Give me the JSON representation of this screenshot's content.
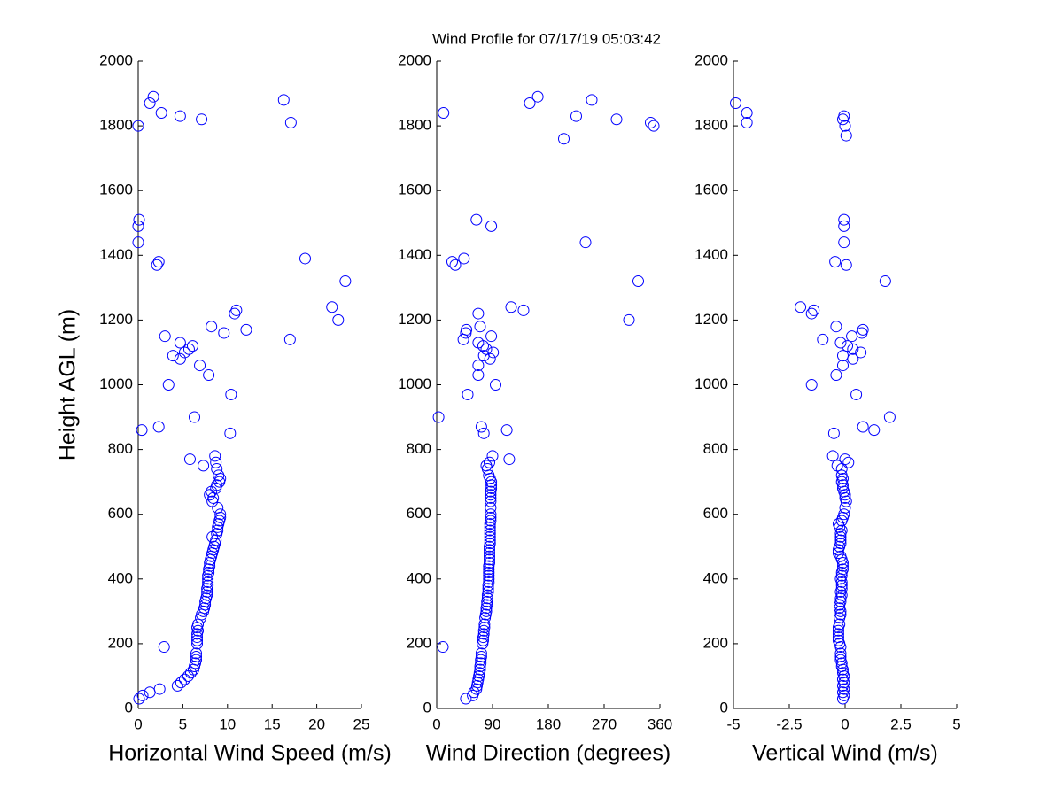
{
  "title": "Wind Profile for  07/17/19 05:03:42",
  "chart_data": [
    {
      "type": "scatter",
      "xlabel": "Horizontal Wind Speed (m/s)",
      "ylabel": "Height AGL (m)",
      "color": "#0000ff",
      "xlim": [
        0,
        25
      ],
      "xticks": [
        0,
        5,
        10,
        15,
        20,
        25
      ],
      "ylim": [
        0,
        2000
      ],
      "yticks": [
        0,
        200,
        400,
        600,
        800,
        1000,
        1200,
        1400,
        1600,
        1800,
        2000
      ],
      "x": [
        0.1,
        0.5,
        1.3,
        2.4,
        4.4,
        4.8,
        5.2,
        5.6,
        5.9,
        6.2,
        6.3,
        6.4,
        6.5,
        6.5,
        6.5,
        2.9,
        6.6,
        6.6,
        6.6,
        6.6,
        6.7,
        6.6,
        6.7,
        7.0,
        7.1,
        7.3,
        7.4,
        7.5,
        7.5,
        7.6,
        7.7,
        7.7,
        7.7,
        7.8,
        7.8,
        7.8,
        7.8,
        7.9,
        7.9,
        8.0,
        8.0,
        8.1,
        8.2,
        8.3,
        8.4,
        8.5,
        8.6,
        8.7,
        8.3,
        8.8,
        8.9,
        8.9,
        9.0,
        9.1,
        9.2,
        9.2,
        8.9,
        8.3,
        8.4,
        8.0,
        8.2,
        8.7,
        8.8,
        9.1,
        9.2,
        9.0,
        8.8,
        7.3,
        8.7,
        5.8,
        8.6,
        10.3,
        0.4,
        2.3,
        6.3,
        10.4,
        3.4,
        7.9,
        6.9,
        4.7,
        3.9,
        5.2,
        5.7,
        6.1,
        4.7,
        17.0,
        3.0,
        9.6,
        12.1,
        8.2,
        22.4,
        10.8,
        11.0,
        21.7,
        23.2,
        2.1,
        2.3,
        18.7,
        0.0,
        0.0,
        0.1,
        0.0,
        17.1,
        7.1,
        4.7,
        2.6,
        1.3,
        16.3,
        1.7
      ],
      "y": [
        30,
        40,
        50,
        60,
        70,
        80,
        90,
        100,
        110,
        120,
        130,
        140,
        150,
        160,
        170,
        190,
        200,
        210,
        220,
        230,
        240,
        250,
        260,
        280,
        290,
        300,
        310,
        320,
        330,
        340,
        350,
        360,
        370,
        380,
        390,
        400,
        410,
        420,
        430,
        440,
        450,
        460,
        470,
        480,
        490,
        500,
        510,
        520,
        530,
        540,
        550,
        560,
        570,
        580,
        590,
        600,
        620,
        640,
        650,
        660,
        670,
        680,
        690,
        700,
        710,
        720,
        740,
        750,
        760,
        770,
        780,
        850,
        860,
        870,
        900,
        970,
        1000,
        1030,
        1060,
        1080,
        1090,
        1100,
        1110,
        1120,
        1130,
        1140,
        1150,
        1160,
        1170,
        1180,
        1200,
        1220,
        1230,
        1240,
        1320,
        1370,
        1380,
        1390,
        1440,
        1490,
        1510,
        1800,
        1810,
        1820,
        1830,
        1840,
        1870,
        1880,
        1890
      ]
    },
    {
      "type": "scatter",
      "xlabel": "Wind Direction (degrees)",
      "color": "#0000ff",
      "xlim": [
        0,
        360
      ],
      "xticks": [
        0,
        90,
        180,
        270,
        360
      ],
      "ylim": [
        0,
        2000
      ],
      "yticks": [
        0,
        200,
        400,
        600,
        800,
        1000,
        1200,
        1400,
        1600,
        1800,
        2000
      ],
      "x": [
        47,
        58,
        60,
        64,
        65,
        66,
        67,
        68,
        69,
        70,
        70,
        71,
        71,
        72,
        72,
        10,
        74,
        75,
        75,
        76,
        76,
        77,
        77,
        78,
        79,
        80,
        80,
        81,
        81,
        82,
        82,
        83,
        83,
        83,
        84,
        84,
        84,
        84,
        84,
        84,
        85,
        85,
        85,
        85,
        85,
        85,
        86,
        86,
        86,
        86,
        86,
        86,
        86,
        87,
        87,
        87,
        87,
        87,
        87,
        87,
        87,
        88,
        88,
        88,
        86,
        84,
        82,
        80,
        85,
        117,
        90,
        76,
        113,
        72,
        3,
        50,
        95,
        67,
        67,
        86,
        76,
        91,
        80,
        75,
        67,
        43,
        88,
        47,
        48,
        70,
        310,
        67,
        140,
        120,
        325,
        30,
        25,
        44,
        240,
        88,
        64,
        205,
        350,
        345,
        290,
        225,
        11,
        150,
        250,
        163
      ],
      "y": [
        30,
        40,
        50,
        60,
        70,
        80,
        90,
        100,
        110,
        120,
        130,
        140,
        150,
        160,
        170,
        190,
        200,
        210,
        220,
        230,
        240,
        250,
        260,
        280,
        290,
        300,
        310,
        320,
        330,
        340,
        350,
        360,
        370,
        380,
        390,
        400,
        410,
        420,
        430,
        440,
        450,
        460,
        470,
        480,
        490,
        500,
        510,
        520,
        530,
        540,
        550,
        560,
        570,
        580,
        590,
        600,
        620,
        640,
        650,
        660,
        670,
        680,
        690,
        700,
        710,
        720,
        740,
        750,
        760,
        770,
        780,
        850,
        860,
        870,
        900,
        970,
        1000,
        1030,
        1060,
        1080,
        1090,
        1100,
        1110,
        1120,
        1130,
        1140,
        1150,
        1160,
        1170,
        1180,
        1200,
        1220,
        1230,
        1240,
        1320,
        1370,
        1380,
        1390,
        1440,
        1490,
        1510,
        1760,
        1800,
        1810,
        1820,
        1830,
        1840,
        1870,
        1880,
        1890
      ]
    },
    {
      "type": "scatter",
      "xlabel": "Vertical Wind (m/s)",
      "color": "#0000ff",
      "xlim": [
        -5,
        5
      ],
      "xticks": [
        -5,
        -2.5,
        0,
        2.5,
        5
      ],
      "ylim": [
        0,
        2000
      ],
      "yticks": [
        0,
        200,
        400,
        600,
        800,
        1000,
        1200,
        1400,
        1600,
        1800,
        2000
      ],
      "x": [
        -0.1,
        -0.05,
        -0.1,
        -0.05,
        -0.1,
        -0.05,
        -0.1,
        -0.05,
        -0.1,
        -0.1,
        -0.15,
        -0.15,
        -0.2,
        -0.2,
        -0.2,
        -0.2,
        -0.25,
        -0.3,
        -0.3,
        -0.3,
        -0.3,
        -0.3,
        -0.25,
        -0.25,
        -0.2,
        -0.2,
        -0.25,
        -0.25,
        -0.2,
        -0.2,
        -0.15,
        -0.2,
        -0.15,
        -0.15,
        -0.15,
        -0.2,
        -0.15,
        -0.15,
        -0.1,
        -0.1,
        -0.1,
        -0.15,
        -0.2,
        -0.3,
        -0.3,
        -0.25,
        -0.2,
        -0.2,
        -0.2,
        -0.2,
        -0.15,
        -0.25,
        -0.3,
        -0.15,
        -0.1,
        -0.05,
        0.0,
        0.05,
        0.0,
        0.0,
        -0.05,
        -0.1,
        -0.1,
        -0.15,
        -0.1,
        -0.15,
        -0.15,
        -0.35,
        0.15,
        0.0,
        -0.55,
        -0.5,
        1.3,
        0.8,
        2.0,
        0.5,
        -1.5,
        -0.4,
        -0.1,
        0.35,
        -0.1,
        0.7,
        0.35,
        0.1,
        -0.2,
        -1.0,
        0.3,
        0.75,
        0.8,
        -0.4,
        -1.5,
        -1.4,
        -2.0,
        1.8,
        0.05,
        -0.45,
        -0.05,
        -0.05,
        -0.05,
        0.05,
        0.0,
        -4.4,
        -0.1,
        -0.05,
        -4.4,
        -4.9
      ],
      "y": [
        30,
        40,
        50,
        60,
        70,
        80,
        90,
        100,
        110,
        120,
        130,
        140,
        150,
        160,
        170,
        190,
        200,
        210,
        220,
        230,
        240,
        250,
        260,
        280,
        290,
        300,
        310,
        320,
        330,
        340,
        350,
        360,
        370,
        380,
        390,
        400,
        410,
        420,
        430,
        440,
        450,
        460,
        470,
        480,
        490,
        500,
        510,
        520,
        530,
        540,
        550,
        560,
        570,
        580,
        590,
        600,
        620,
        640,
        650,
        660,
        670,
        680,
        690,
        700,
        710,
        720,
        740,
        750,
        760,
        770,
        780,
        850,
        860,
        870,
        900,
        970,
        1000,
        1030,
        1060,
        1080,
        1090,
        1100,
        1110,
        1120,
        1130,
        1140,
        1150,
        1160,
        1170,
        1180,
        1220,
        1230,
        1240,
        1320,
        1370,
        1380,
        1440,
        1490,
        1510,
        1770,
        1800,
        1810,
        1820,
        1830,
        1840,
        1870
      ]
    }
  ]
}
